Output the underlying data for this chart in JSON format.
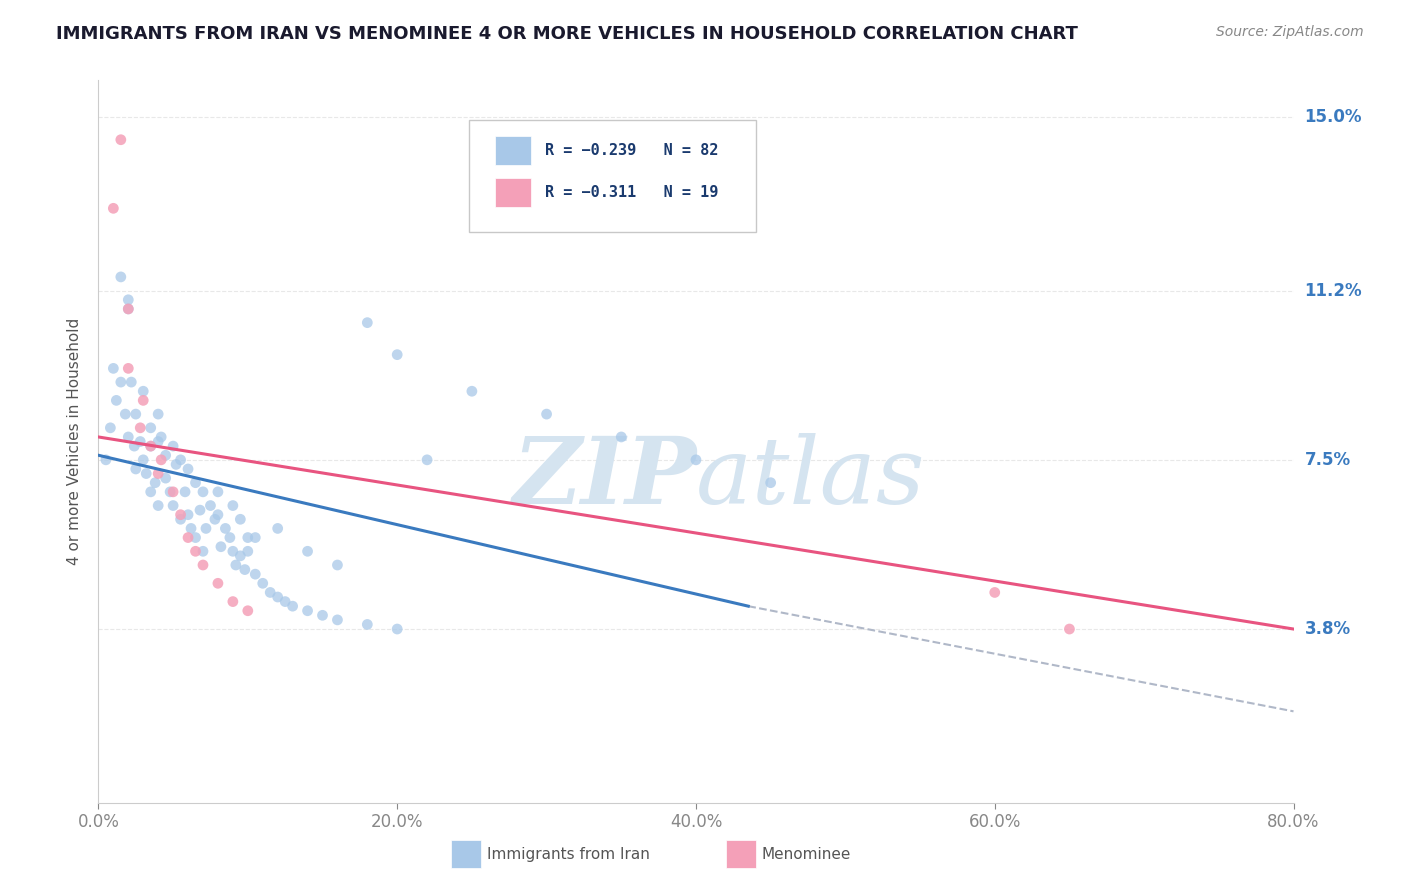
{
  "title": "IMMIGRANTS FROM IRAN VS MENOMINEE 4 OR MORE VEHICLES IN HOUSEHOLD CORRELATION CHART",
  "source": "Source: ZipAtlas.com",
  "ylabel": "4 or more Vehicles in Household",
  "xlim": [
    0.0,
    0.8
  ],
  "ylim": [
    0.0,
    0.158
  ],
  "xtick_labels": [
    "0.0%",
    "20.0%",
    "40.0%",
    "60.0%",
    "80.0%"
  ],
  "xtick_values": [
    0.0,
    0.2,
    0.4,
    0.6,
    0.8
  ],
  "ytick_labels": [
    "3.8%",
    "7.5%",
    "11.2%",
    "15.0%"
  ],
  "ytick_values": [
    0.038,
    0.075,
    0.112,
    0.15
  ],
  "legend_labels": [
    "R = −0.239   N = 82",
    "R = −0.311   N = 19"
  ],
  "blue_scatter_x": [
    0.005,
    0.008,
    0.01,
    0.012,
    0.015,
    0.018,
    0.02,
    0.02,
    0.022,
    0.024,
    0.025,
    0.025,
    0.028,
    0.03,
    0.03,
    0.032,
    0.035,
    0.035,
    0.035,
    0.038,
    0.04,
    0.04,
    0.04,
    0.042,
    0.045,
    0.045,
    0.048,
    0.05,
    0.05,
    0.052,
    0.055,
    0.055,
    0.058,
    0.06,
    0.06,
    0.062,
    0.065,
    0.065,
    0.068,
    0.07,
    0.07,
    0.072,
    0.075,
    0.078,
    0.08,
    0.082,
    0.085,
    0.088,
    0.09,
    0.092,
    0.095,
    0.098,
    0.1,
    0.105,
    0.11,
    0.115,
    0.12,
    0.125,
    0.13,
    0.14,
    0.15,
    0.16,
    0.18,
    0.2,
    0.22,
    0.25,
    0.3,
    0.35,
    0.4,
    0.45,
    0.18,
    0.2,
    0.1,
    0.12,
    0.14,
    0.16,
    0.08,
    0.09,
    0.095,
    0.105,
    0.015,
    0.02
  ],
  "blue_scatter_y": [
    0.075,
    0.082,
    0.095,
    0.088,
    0.092,
    0.085,
    0.08,
    0.11,
    0.092,
    0.078,
    0.085,
    0.073,
    0.079,
    0.09,
    0.075,
    0.072,
    0.082,
    0.078,
    0.068,
    0.07,
    0.085,
    0.079,
    0.065,
    0.08,
    0.076,
    0.071,
    0.068,
    0.078,
    0.065,
    0.074,
    0.075,
    0.062,
    0.068,
    0.073,
    0.063,
    0.06,
    0.07,
    0.058,
    0.064,
    0.068,
    0.055,
    0.06,
    0.065,
    0.062,
    0.063,
    0.056,
    0.06,
    0.058,
    0.055,
    0.052,
    0.054,
    0.051,
    0.055,
    0.05,
    0.048,
    0.046,
    0.045,
    0.044,
    0.043,
    0.042,
    0.041,
    0.04,
    0.039,
    0.038,
    0.075,
    0.09,
    0.085,
    0.08,
    0.075,
    0.07,
    0.105,
    0.098,
    0.058,
    0.06,
    0.055,
    0.052,
    0.068,
    0.065,
    0.062,
    0.058,
    0.115,
    0.108
  ],
  "pink_scatter_x": [
    0.01,
    0.015,
    0.02,
    0.02,
    0.028,
    0.03,
    0.035,
    0.04,
    0.042,
    0.05,
    0.055,
    0.06,
    0.065,
    0.07,
    0.08,
    0.09,
    0.1,
    0.6,
    0.65
  ],
  "pink_scatter_y": [
    0.13,
    0.145,
    0.108,
    0.095,
    0.082,
    0.088,
    0.078,
    0.072,
    0.075,
    0.068,
    0.063,
    0.058,
    0.055,
    0.052,
    0.048,
    0.044,
    0.042,
    0.046,
    0.038
  ],
  "blue_line_x": [
    0.0,
    0.435
  ],
  "blue_line_y": [
    0.076,
    0.043
  ],
  "pink_line_x": [
    0.0,
    0.8
  ],
  "pink_line_y": [
    0.08,
    0.038
  ],
  "dashed_line_x": [
    0.435,
    0.8
  ],
  "dashed_line_y": [
    0.043,
    0.02
  ],
  "scatter_color_blue": "#a8c8e8",
  "scatter_color_pink": "#f4a0b8",
  "line_color_blue": "#3a7abf",
  "line_color_pink": "#e85480",
  "dashed_line_color": "#b0b8c8",
  "watermark_color": "#d5e4f0",
  "background_color": "#ffffff",
  "grid_color": "#e8e8e8",
  "title_color": "#1a1a2e",
  "axis_label_color": "#555555",
  "right_label_color": "#3a7abf",
  "title_fontsize": 13,
  "source_fontsize": 10
}
